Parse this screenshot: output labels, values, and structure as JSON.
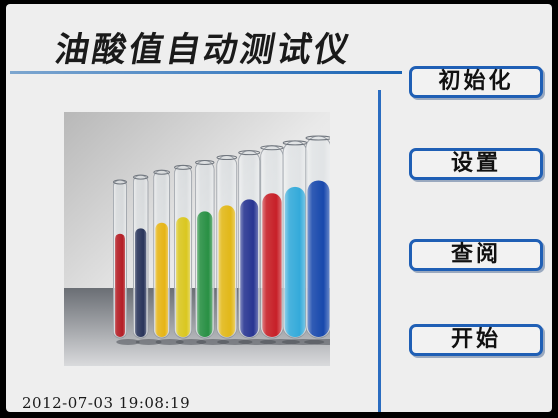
{
  "app": {
    "title": "油酸值自动测试仪"
  },
  "menu": {
    "items": [
      {
        "id": "init",
        "label": "初始化"
      },
      {
        "id": "settings",
        "label": "设置"
      },
      {
        "id": "review",
        "label": "查阅"
      },
      {
        "id": "start",
        "label": "开始"
      }
    ]
  },
  "status": {
    "datetime": "2012-07-03 19:08:19"
  },
  "image": {
    "subject": "test-tubes",
    "tube_colors": [
      "#b0121a",
      "#1e2a52",
      "#e5b10a",
      "#d8c414",
      "#1d8a3a",
      "#e0b40c",
      "#1c2a8c",
      "#c4141c",
      "#2aa6d8",
      "#0c3fa8"
    ]
  },
  "colors": {
    "accent": "#1f5fb5",
    "screen_bg": "#eeeeee",
    "bezel": "#000000"
  }
}
